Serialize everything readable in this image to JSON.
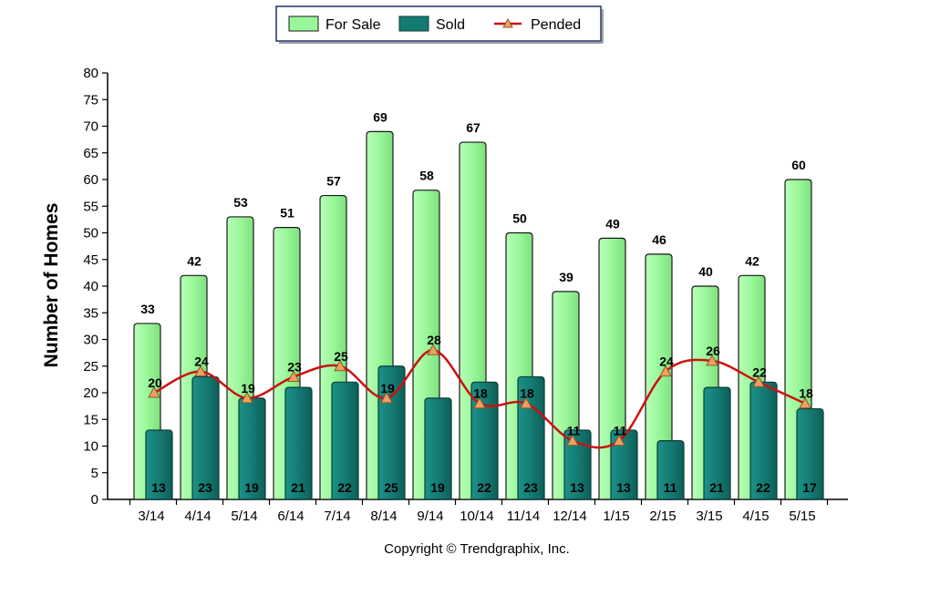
{
  "chart_data": {
    "type": "bar",
    "categories": [
      "3/14",
      "4/14",
      "5/14",
      "6/14",
      "7/14",
      "8/14",
      "9/14",
      "10/14",
      "11/14",
      "12/14",
      "1/15",
      "2/15",
      "3/15",
      "4/15",
      "5/15"
    ],
    "series": [
      {
        "name": "For Sale",
        "kind": "bar",
        "color": "#99f799",
        "values": [
          33,
          42,
          53,
          51,
          57,
          69,
          58,
          67,
          50,
          39,
          49,
          46,
          40,
          42,
          60
        ]
      },
      {
        "name": "Sold",
        "kind": "bar",
        "color": "#147b73",
        "values": [
          13,
          23,
          19,
          21,
          22,
          25,
          19,
          22,
          23,
          13,
          13,
          11,
          21,
          22,
          17
        ]
      },
      {
        "name": "Pended",
        "kind": "line",
        "color": "#cc1111",
        "marker_color": "#f0a060",
        "values": [
          20,
          24,
          19,
          23,
          25,
          19,
          28,
          18,
          18,
          11,
          11,
          24,
          26,
          22,
          18
        ]
      }
    ],
    "ylabel": "Number of Homes",
    "xlabel": "",
    "ylim": [
      0,
      80
    ],
    "yticks": [
      0,
      5,
      10,
      15,
      20,
      25,
      30,
      35,
      40,
      45,
      50,
      55,
      60,
      65,
      70,
      75,
      80
    ],
    "legend_position": "top-center",
    "grid": false
  },
  "footer": "Copyright © Trendgraphix, Inc."
}
